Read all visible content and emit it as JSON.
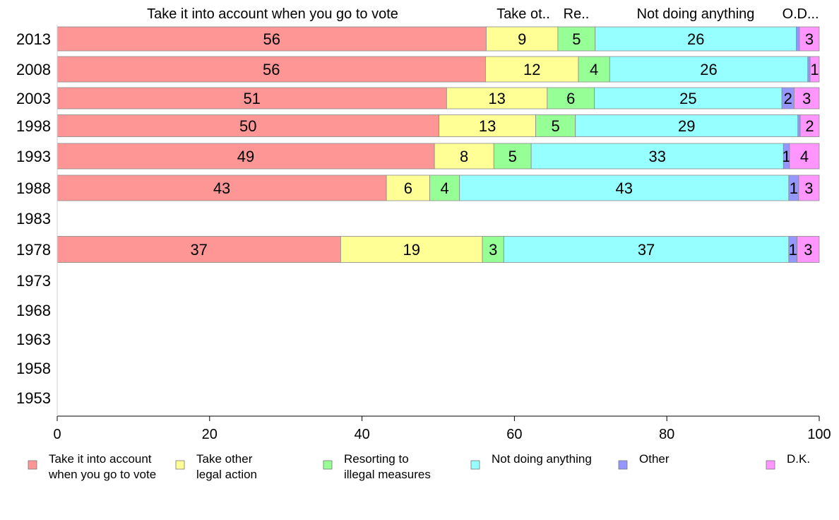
{
  "chart_data": {
    "type": "bar",
    "orientation": "horizontal",
    "stacked": true,
    "title": "",
    "xlabel": "",
    "ylabel": "",
    "xlim": [
      0,
      100
    ],
    "x_ticks": [
      "0",
      "20",
      "40",
      "60",
      "80",
      "100"
    ],
    "grid": false,
    "legend_position": "bottom",
    "categories": [
      "2013",
      "2008",
      "2003",
      "1998",
      "1993",
      "1988",
      "1983",
      "1978",
      "1973",
      "1968",
      "1963",
      "1958",
      "1953"
    ],
    "top_labels": [
      "Take it into account when you go to vote",
      "Take ot..",
      "Re..",
      "Not doing anything",
      "O..",
      "D..."
    ],
    "series": [
      {
        "name": "Take it into account when you go to vote",
        "legend_lines": [
          "Take it into account",
          "when you go to vote"
        ],
        "color": "#ff9696",
        "values": [
          56.3,
          56.2,
          51.1,
          50.1,
          49.5,
          43.2,
          null,
          37.2,
          null,
          null,
          null,
          null,
          null
        ],
        "labels": [
          "56",
          "56",
          "51",
          "50",
          "49",
          "43",
          "",
          "37",
          "",
          "",
          "",
          "",
          ""
        ]
      },
      {
        "name": "Take other legal action",
        "legend_lines": [
          "Take other",
          "legal action"
        ],
        "color": "#ffff96",
        "values": [
          9.4,
          12.2,
          13.2,
          12.7,
          7.8,
          5.7,
          null,
          18.6,
          null,
          null,
          null,
          null,
          null
        ],
        "labels": [
          "9",
          "12",
          "13",
          "13",
          "8",
          "6",
          "",
          "19",
          "",
          "",
          "",
          "",
          ""
        ]
      },
      {
        "name": "Resorting to illegal measures",
        "legend_lines": [
          "Resorting to",
          "illegal measures"
        ],
        "color": "#96ff96",
        "values": [
          4.9,
          4.1,
          6.2,
          5.2,
          4.9,
          3.9,
          null,
          2.8,
          null,
          null,
          null,
          null,
          null
        ],
        "labels": [
          "5",
          "4",
          "6",
          "5",
          "5",
          "4",
          "",
          "3",
          "",
          "",
          "",
          "",
          ""
        ]
      },
      {
        "name": "Not doing anything",
        "legend_lines": [
          "Not doing anything"
        ],
        "color": "#96ffff",
        "values": [
          26.4,
          26.0,
          24.6,
          29.2,
          33.1,
          43.2,
          null,
          37.4,
          null,
          null,
          null,
          null,
          null
        ],
        "labels": [
          "26",
          "26",
          "25",
          "29",
          "33",
          "43",
          "",
          "37",
          "",
          "",
          "",
          "",
          ""
        ]
      },
      {
        "name": "Other",
        "legend_lines": [
          "Other"
        ],
        "color": "#9696ff",
        "values": [
          0.4,
          0.3,
          1.6,
          0.3,
          0.8,
          1.3,
          null,
          1.1,
          null,
          null,
          null,
          null,
          null
        ],
        "labels": [
          "",
          "",
          "2",
          "",
          "1",
          "1",
          "",
          "1",
          "",
          "",
          "",
          "",
          ""
        ]
      },
      {
        "name": "D.K.",
        "legend_lines": [
          "D.K."
        ],
        "color": "#ff96ff",
        "values": [
          2.6,
          1.2,
          3.3,
          2.5,
          3.9,
          2.7,
          null,
          2.9,
          null,
          null,
          null,
          null,
          null
        ],
        "labels": [
          "3",
          "1",
          "3",
          "2",
          "4",
          "3",
          "",
          "3",
          "",
          "",
          "",
          "",
          ""
        ]
      }
    ]
  }
}
